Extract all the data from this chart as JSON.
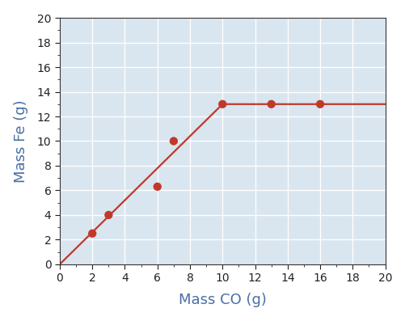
{
  "scatter_x": [
    2,
    3,
    6,
    7,
    10,
    13,
    16
  ],
  "scatter_y": [
    2.5,
    4.0,
    6.3,
    10.0,
    13.0,
    13.0,
    13.0
  ],
  "line_x": [
    0,
    10,
    20
  ],
  "line_y": [
    0,
    13,
    13
  ],
  "dot_color": "#c0392b",
  "line_color": "#c0392b",
  "background_color": "#dae6ef",
  "fig_color": "#ffffff",
  "xlabel": "Mass CO (g)",
  "ylabel": "Mass Fe (g)",
  "xlim": [
    0,
    20
  ],
  "ylim": [
    0,
    20
  ],
  "xticks": [
    0,
    2,
    4,
    6,
    8,
    10,
    12,
    14,
    16,
    18,
    20
  ],
  "yticks": [
    0,
    2,
    4,
    6,
    8,
    10,
    12,
    14,
    16,
    18,
    20
  ],
  "xlabel_fontsize": 13,
  "ylabel_fontsize": 13,
  "tick_fontsize": 10,
  "dot_size": 55,
  "line_width": 1.6,
  "label_color": "#4a6fa5",
  "tick_color": "#222222",
  "grid_color": "#ffffff",
  "spine_color": "#333333"
}
